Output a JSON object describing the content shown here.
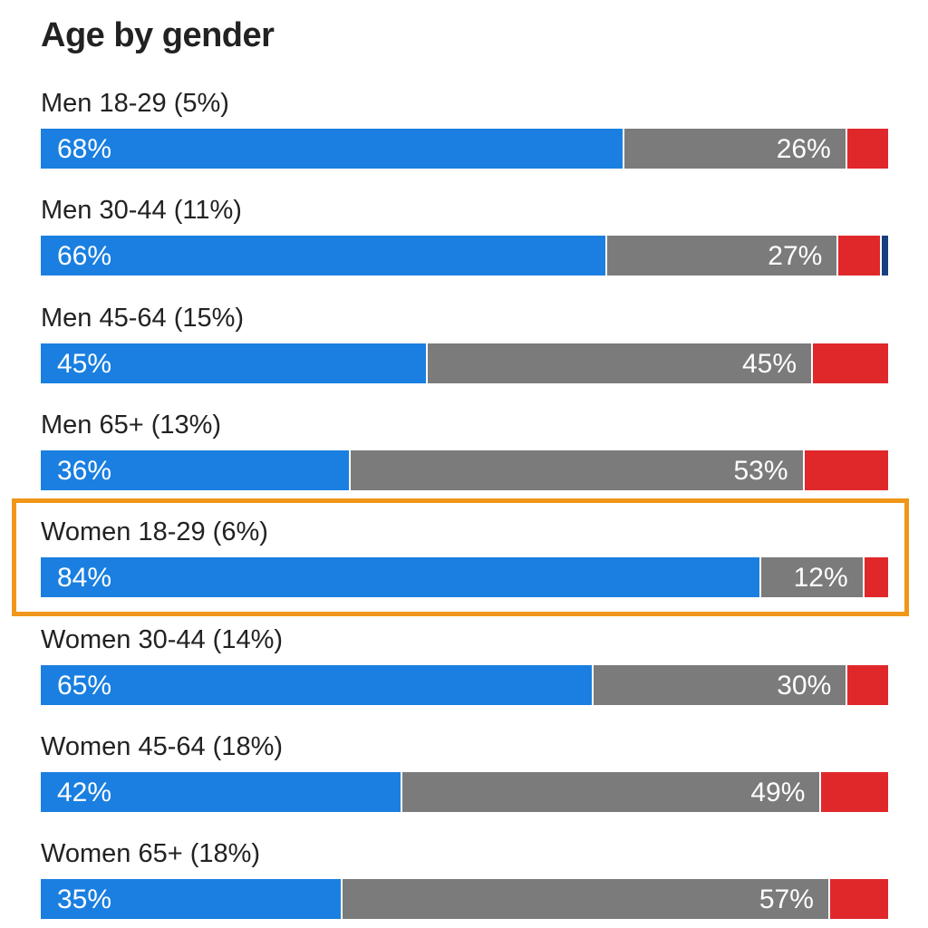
{
  "chart_data": {
    "type": "bar",
    "orientation": "horizontal",
    "stacked": true,
    "title": "Age by gender",
    "categories": [
      "Men 18-29 (5%)",
      "Men 30-44 (11%)",
      "Men 45-64 (15%)",
      "Men 65+ (13%)",
      "Women 18-29 (6%)",
      "Women 30-44 (14%)",
      "Women 45-64 (18%)",
      "Women 65+ (18%)"
    ],
    "series": [
      {
        "color": "#1a7fe0",
        "values": [
          68,
          66,
          45,
          36,
          84,
          65,
          42,
          35
        ]
      },
      {
        "color": "#7b7b7b",
        "values": [
          26,
          27,
          45,
          53,
          12,
          30,
          49,
          57
        ]
      },
      {
        "color": "#e0282b",
        "values": [
          5,
          5,
          9,
          10,
          3,
          5,
          8,
          7
        ]
      },
      {
        "color": "#17407f",
        "values": [
          0,
          1,
          0,
          0,
          0,
          0,
          0,
          0
        ]
      }
    ],
    "value_labels": [
      [
        "68%",
        "26%"
      ],
      [
        "66%",
        "27%"
      ],
      [
        "45%",
        "45%"
      ],
      [
        "36%",
        "53%"
      ],
      [
        "84%",
        "12%"
      ],
      [
        "65%",
        "30%"
      ],
      [
        "42%",
        "49%"
      ],
      [
        "35%",
        "57%"
      ]
    ],
    "highlighted_category": "Women 18-29 (6%)",
    "highlight_color": "#f0961a",
    "legend": "none",
    "grid": false
  }
}
